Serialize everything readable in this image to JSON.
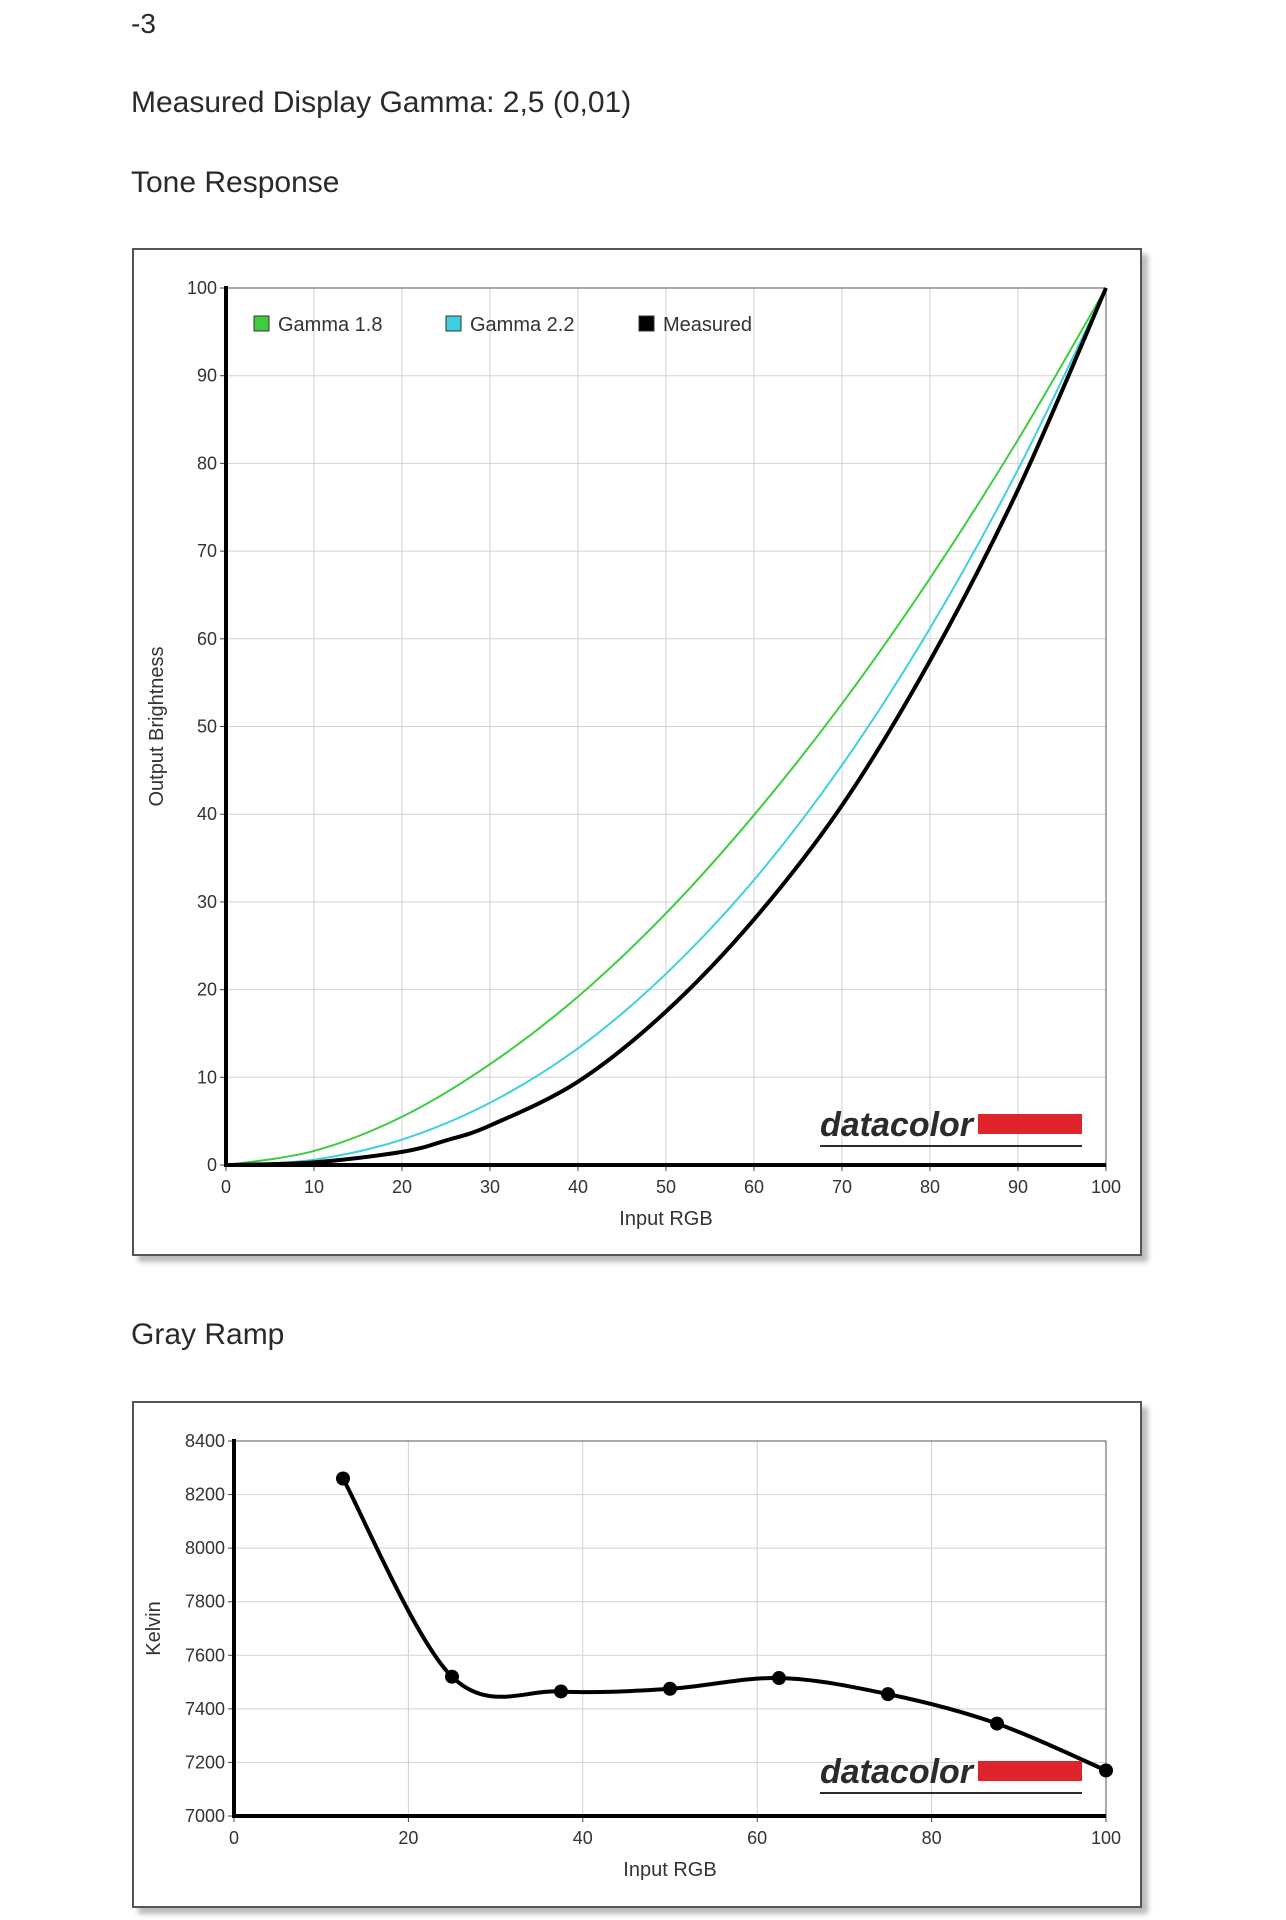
{
  "header": {
    "line1": "-3",
    "measured_gamma": "Measured Display Gamma: 2,5 (0,01)",
    "tone_title": "Tone Response",
    "gray_title": "Gray Ramp"
  },
  "brand": {
    "logo_text": "datacolor",
    "logo_text_color": "#2b2b2b",
    "logo_bar_color": "#e0242c"
  },
  "chart_data": [
    {
      "type": "line",
      "title": "Tone Response",
      "xlabel": "Input RGB",
      "ylabel": "Output Brightness",
      "xlim": [
        0,
        100
      ],
      "ylim": [
        0,
        100
      ],
      "xticks": [
        0,
        10,
        20,
        30,
        40,
        50,
        60,
        70,
        80,
        90,
        100
      ],
      "yticks": [
        0,
        10,
        20,
        30,
        40,
        50,
        60,
        70,
        80,
        90,
        100
      ],
      "grid": true,
      "legend_position": "top",
      "series": [
        {
          "name": "Gamma 1.8",
          "color": "#3fcc3f",
          "x": [
            0,
            10,
            20,
            30,
            40,
            50,
            60,
            70,
            80,
            90,
            100
          ],
          "y": [
            0,
            1.6,
            5.5,
            11.5,
            19.2,
            28.7,
            39.9,
            52.6,
            66.9,
            82.7,
            100
          ]
        },
        {
          "name": "Gamma 2.2",
          "color": "#3ed0e0",
          "x": [
            0,
            10,
            20,
            30,
            40,
            50,
            60,
            70,
            80,
            90,
            100
          ],
          "y": [
            0,
            0.6,
            2.9,
            7.1,
            13.3,
            21.8,
            32.5,
            45.6,
            61.2,
            79.3,
            100
          ]
        },
        {
          "name": "Measured",
          "color": "#000000",
          "x": [
            0,
            10,
            20,
            25,
            30,
            40,
            50,
            60,
            70,
            80,
            90,
            100
          ],
          "y": [
            0,
            0.3,
            1.5,
            2.8,
            4.5,
            9.5,
            17.5,
            28,
            41,
            57.5,
            77,
            100
          ]
        }
      ]
    },
    {
      "type": "line",
      "title": "Gray Ramp",
      "xlabel": "Input RGB",
      "ylabel": "Kelvin",
      "xlim": [
        0,
        100
      ],
      "ylim": [
        7000,
        8400
      ],
      "xticks": [
        0,
        20,
        40,
        60,
        80,
        100
      ],
      "yticks": [
        7000,
        7200,
        7400,
        7600,
        7800,
        8000,
        8200,
        8400
      ],
      "grid": true,
      "series": [
        {
          "name": "",
          "color": "#000000",
          "x": [
            12.5,
            25,
            37.5,
            50,
            62.5,
            75,
            87.5,
            100
          ],
          "y": [
            8260,
            7520,
            7465,
            7475,
            7515,
            7455,
            7345,
            7170
          ]
        }
      ]
    }
  ]
}
